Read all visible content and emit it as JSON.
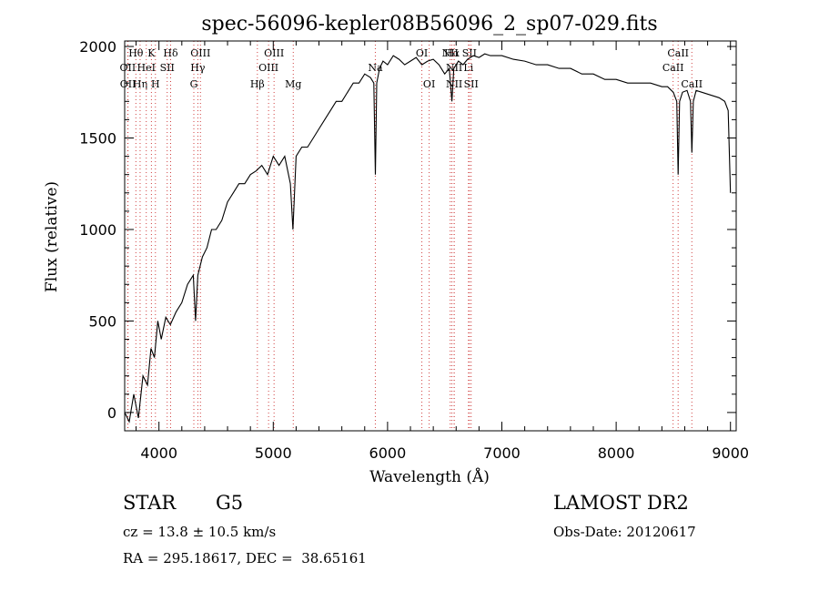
{
  "chart_data": {
    "type": "line",
    "title": "spec-56096-kepler08B56096_2_sp07-029.fits",
    "xlabel": "Wavelength (Å)",
    "ylabel": "Flux (relative)",
    "xlim": [
      3700,
      9050
    ],
    "ylim": [
      -100,
      2030
    ],
    "xticks": [
      4000,
      5000,
      6000,
      7000,
      8000,
      9000
    ],
    "yticks": [
      0,
      500,
      1000,
      1500,
      2000
    ],
    "grid": false,
    "series": [
      {
        "x": [
          3700,
          3740,
          3780,
          3820,
          3860,
          3900,
          3930,
          3960,
          3990,
          4020,
          4060,
          4100,
          4150,
          4200,
          4250,
          4300,
          4320,
          4340,
          4380,
          4420,
          4460,
          4500,
          4550,
          4600,
          4650,
          4700,
          4750,
          4800,
          4850,
          4900,
          4950,
          5000,
          5050,
          5100,
          5150,
          5172,
          5200,
          5250,
          5300,
          5350,
          5400,
          5450,
          5500,
          5550,
          5600,
          5650,
          5700,
          5750,
          5800,
          5850,
          5880,
          5893,
          5905,
          5930,
          5960,
          6000,
          6050,
          6100,
          6150,
          6200,
          6250,
          6300,
          6350,
          6400,
          6450,
          6500,
          6540,
          6563,
          6580,
          6620,
          6660,
          6700,
          6750,
          6800,
          6850,
          6900,
          6950,
          7000,
          7100,
          7200,
          7300,
          7400,
          7500,
          7600,
          7700,
          7800,
          7900,
          8000,
          8100,
          8200,
          8300,
          8400,
          8450,
          8500,
          8530,
          8542,
          8555,
          8580,
          8620,
          8650,
          8662,
          8675,
          8700,
          8750,
          8800,
          8850,
          8900,
          8950,
          8980,
          9000
        ],
        "y": [
          0,
          -50,
          100,
          -30,
          200,
          150,
          350,
          300,
          500,
          400,
          520,
          480,
          550,
          600,
          700,
          750,
          500,
          750,
          850,
          900,
          1000,
          1000,
          1050,
          1150,
          1200,
          1250,
          1250,
          1300,
          1320,
          1350,
          1300,
          1400,
          1350,
          1400,
          1250,
          1000,
          1400,
          1450,
          1450,
          1500,
          1550,
          1600,
          1650,
          1700,
          1700,
          1750,
          1800,
          1800,
          1850,
          1830,
          1800,
          1300,
          1800,
          1880,
          1920,
          1900,
          1950,
          1930,
          1900,
          1920,
          1940,
          1900,
          1920,
          1930,
          1900,
          1850,
          1880,
          1700,
          1880,
          1920,
          1900,
          1930,
          1950,
          1940,
          1960,
          1950,
          1950,
          1950,
          1930,
          1920,
          1900,
          1900,
          1880,
          1880,
          1850,
          1850,
          1820,
          1820,
          1800,
          1800,
          1800,
          1780,
          1780,
          1750,
          1700,
          1300,
          1700,
          1750,
          1760,
          1700,
          1420,
          1700,
          1760,
          1750,
          1740,
          1730,
          1720,
          1700,
          1650,
          1200
        ],
        "color": "#000000"
      }
    ],
    "lines": [
      {
        "label": "Hθ",
        "x": 3798,
        "row": 1
      },
      {
        "label": "OII",
        "x": 3727,
        "row": 2
      },
      {
        "label": "OII",
        "x": 3729,
        "row": 3
      },
      {
        "label": "Hη",
        "x": 3835,
        "row": 3
      },
      {
        "label": "K",
        "x": 3934,
        "row": 1
      },
      {
        "label": "HeI",
        "x": 3889,
        "row": 2
      },
      {
        "label": "H",
        "x": 3969,
        "row": 3
      },
      {
        "label": "Hδ",
        "x": 4102,
        "row": 1
      },
      {
        "label": "SII",
        "x": 4072,
        "row": 2
      },
      {
        "label": "OIII",
        "x": 4363,
        "row": 1
      },
      {
        "label": "Hγ",
        "x": 4340,
        "row": 2
      },
      {
        "label": "G",
        "x": 4305,
        "row": 3
      },
      {
        "label": "OIII",
        "x": 5007,
        "row": 1
      },
      {
        "label": "OIII",
        "x": 4959,
        "row": 2
      },
      {
        "label": "Hβ",
        "x": 4861,
        "row": 3
      },
      {
        "label": "Mg",
        "x": 5175,
        "row": 3
      },
      {
        "label": "Na",
        "x": 5893,
        "row": 2
      },
      {
        "label": "OI",
        "x": 6300,
        "row": 1
      },
      {
        "label": "OI",
        "x": 6364,
        "row": 3
      },
      {
        "label": "NII",
        "x": 6548,
        "row": 1
      },
      {
        "label": "Hα",
        "x": 6563,
        "row": 1
      },
      {
        "label": "NII",
        "x": 6583,
        "row": 2
      },
      {
        "label": "NII",
        "x": 6583,
        "row": 3
      },
      {
        "label": "Li",
        "x": 6708,
        "row": 2
      },
      {
        "label": "SII",
        "x": 6716,
        "row": 1
      },
      {
        "label": "SII",
        "x": 6731,
        "row": 3
      },
      {
        "label": "CaII",
        "x": 8542,
        "row": 1
      },
      {
        "label": "CaII",
        "x": 8498,
        "row": 2
      },
      {
        "label": "CaII",
        "x": 8662,
        "row": 3
      }
    ]
  },
  "info": {
    "class": "STAR",
    "subclass": "G5",
    "survey": "LAMOST DR2",
    "cz": "cz = 13.8 ± 10.5 km/s",
    "obs_date": "Obs-Date: 20120617",
    "radec": "RA = 295.18617, DEC =  38.65161"
  }
}
